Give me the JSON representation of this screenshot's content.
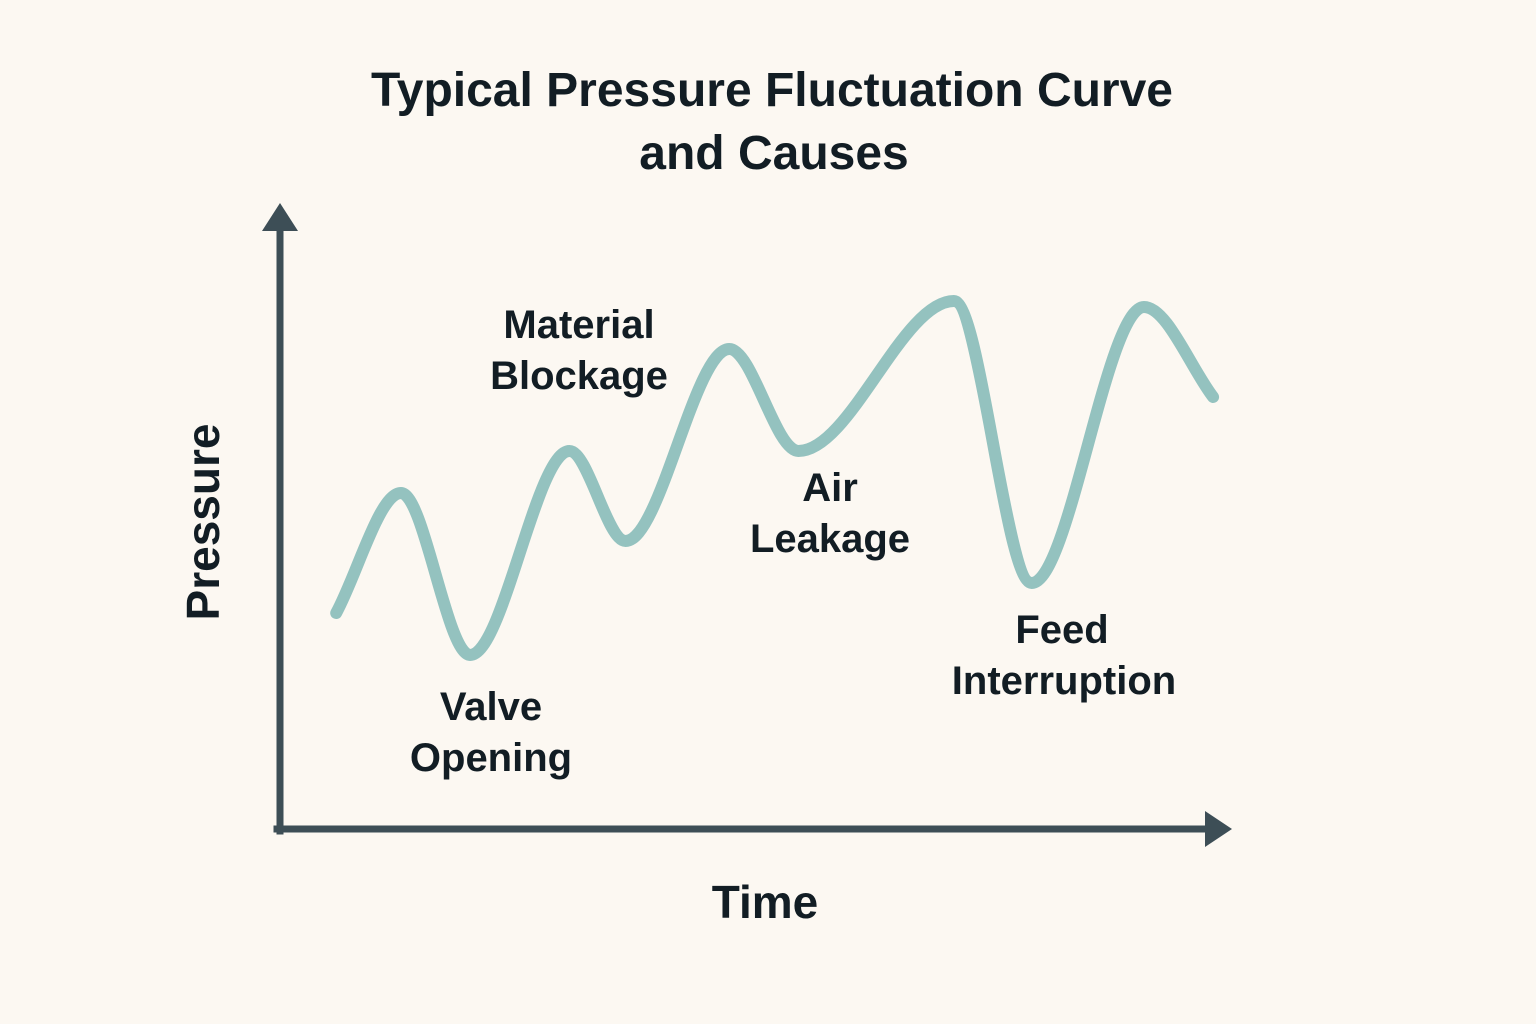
{
  "chart_data": {
    "type": "line",
    "title_lines": [
      "Typical Pressure Fluctuation Curve",
      "and Causes"
    ],
    "xlabel": "Time",
    "ylabel": "Pressure",
    "grid": false,
    "legend": "none",
    "colors": {
      "background": "#fcf8f2",
      "axis": "#3d4e56",
      "curve": "#94c2bf",
      "text": "#121d24"
    },
    "xlim": [
      0,
      100
    ],
    "ylim": [
      0,
      100
    ],
    "series": [
      {
        "x": [
          6.5,
          14,
          22,
          33.5,
          40,
          52,
          60,
          78,
          87,
          100,
          108
        ],
        "values": [
          36,
          56,
          29,
          63,
          48,
          80,
          63,
          88,
          41,
          87,
          72
        ]
      }
    ],
    "annotations": [
      {
        "lines": [
          "Valve",
          "Opening"
        ]
      },
      {
        "lines": [
          "Material",
          "Blockage"
        ]
      },
      {
        "lines": [
          "Air",
          "Leakage"
        ]
      },
      {
        "lines": [
          "Feed",
          "Interruption"
        ]
      }
    ]
  }
}
